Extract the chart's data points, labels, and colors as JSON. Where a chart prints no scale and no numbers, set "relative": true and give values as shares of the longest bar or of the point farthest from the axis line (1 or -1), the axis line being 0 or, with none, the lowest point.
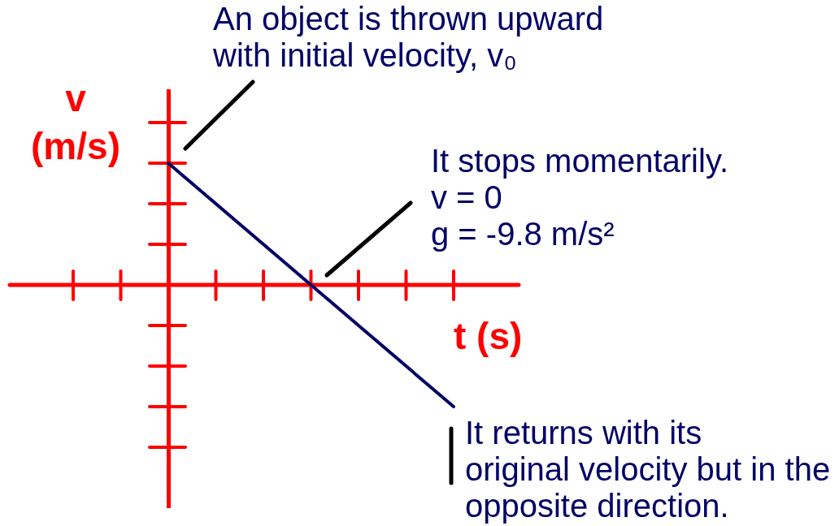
{
  "chart_data": {
    "type": "line",
    "relative": true,
    "categories": [
      null,
      null,
      null
    ],
    "series": [
      {
        "color": "#000066",
        "values": [
          1,
          0,
          -1
        ]
      }
    ],
    "xlabel": "t (s)",
    "ylabel": "v (m/s)",
    "ref_lines": [
      {
        "axis": "y",
        "value": 0,
        "color": "#ff0000"
      }
    ],
    "annotations": [
      "An object is thrown upward\nwith initial velocity, v₀",
      "It stops momentarily.\nv = 0\ng = -9.8 m/s²",
      "It returns with its\noriginal velocity but in the\nopposite direction."
    ]
  }
}
